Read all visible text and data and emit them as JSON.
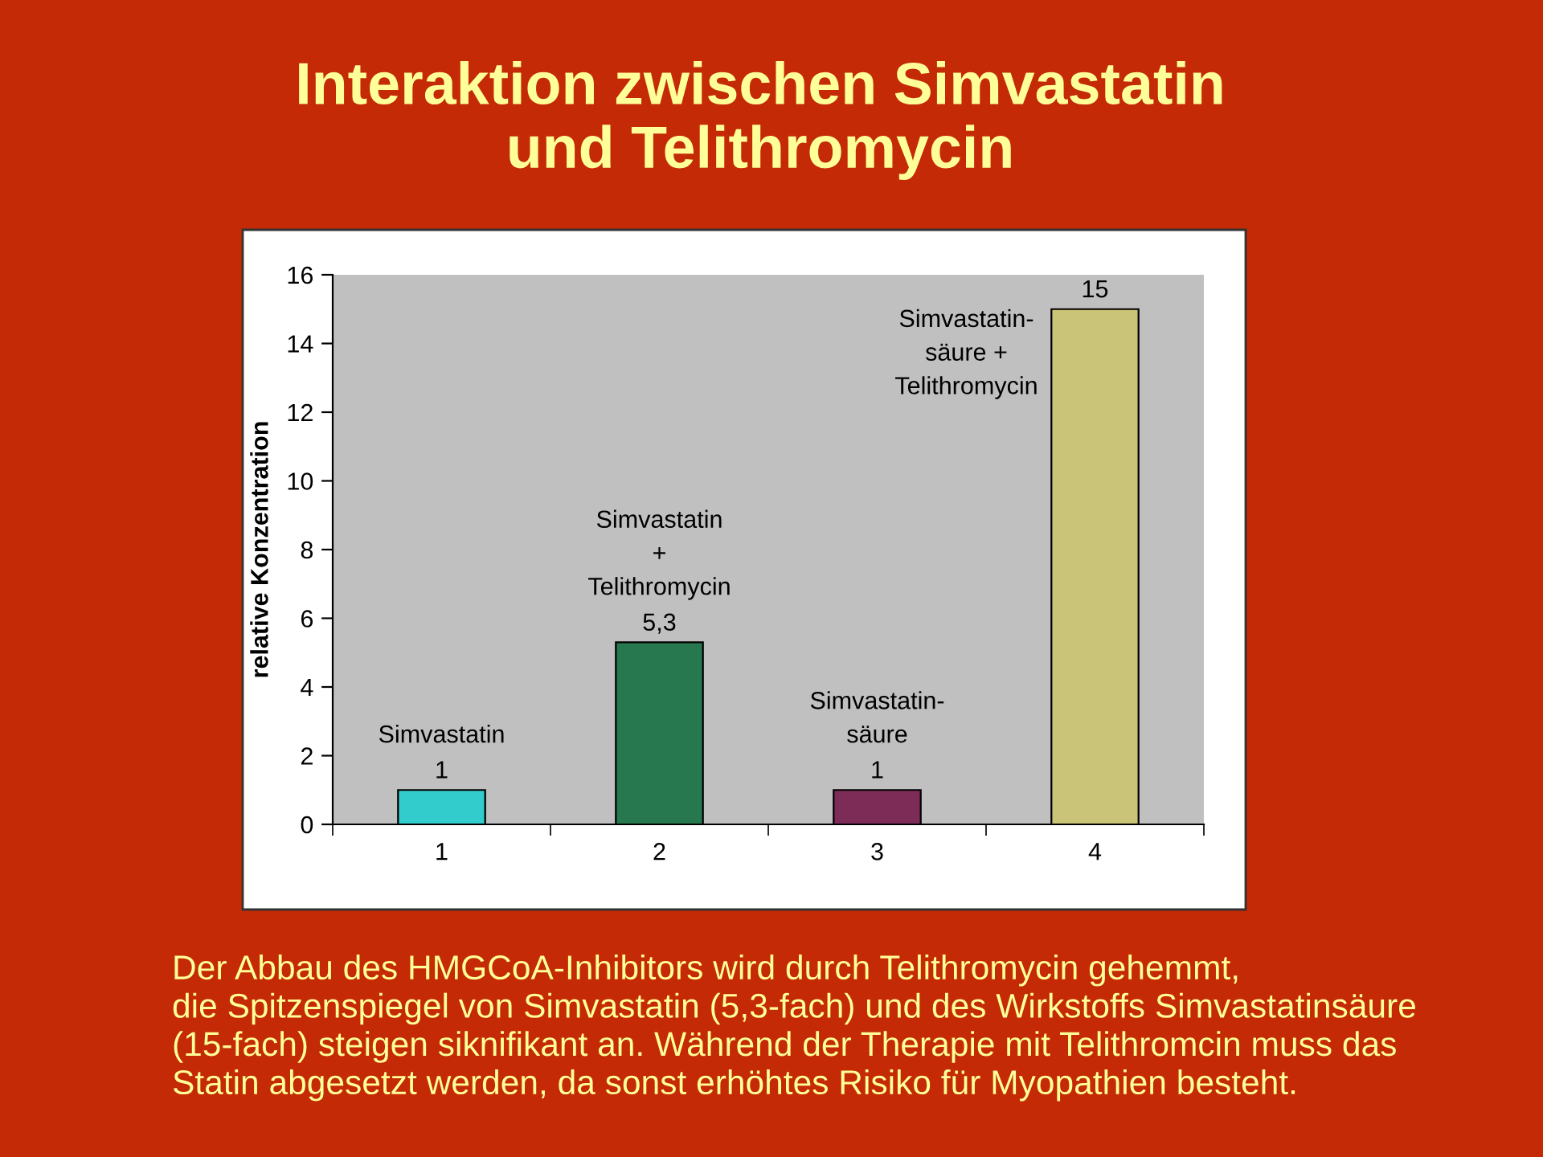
{
  "chart_data": {
    "type": "bar",
    "title": "Interaktion zwischen Simvastatin\nund Telithromycin",
    "ylabel": "relative Konzentration",
    "categories": [
      "1",
      "2",
      "3",
      "4"
    ],
    "values": [
      1,
      5.3,
      1,
      15
    ],
    "colors": [
      "#33cccc",
      "#27774f",
      "#7d2c58",
      "#c9c477"
    ],
    "value_labels": [
      "1",
      "5,3",
      "1",
      "15"
    ],
    "ylim": [
      0,
      16
    ],
    "yticks": [
      0,
      2,
      4,
      6,
      8,
      10,
      12,
      14,
      16
    ],
    "grid": false,
    "legend": false,
    "annotations": [
      {
        "text": "Simvastatin",
        "x": "1",
        "y": 1
      },
      {
        "text": "Simvastatin\n+\nTelithromycin",
        "x": "2",
        "y": 5.3
      },
      {
        "text": "Simvastatin-\nsäure",
        "x": "3",
        "y": 1
      },
      {
        "text": "Simvastatin-\nsäure +\nTelithromycin",
        "x": "4",
        "y": 15
      },
      "Der Abbau des HMGCoA-Inhibitors wird durch Telithromycin gehemmt,\ndie Spitzenspiegel von Simvastatin (5,3-fach) und des Wirkstoffs Simvastatinsäure\n(15-fach) steigen siknifikant an. Während der Therapie mit Telithromcin muss das\nStatin abgesetzt werden, da sonst erhöhtes Risiko für Myopathien besteht."
    ]
  }
}
